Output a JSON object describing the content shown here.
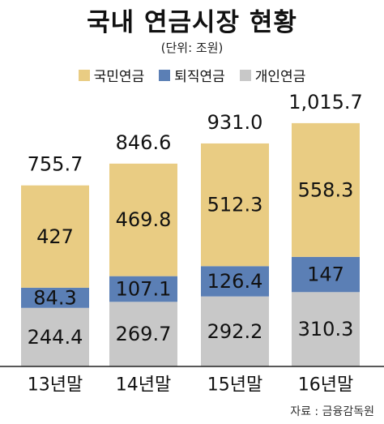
{
  "chart_data": {
    "type": "bar",
    "stacked": true,
    "title": "국내 연금시장 현황",
    "unit_label": "(단위: 조원)",
    "categories": [
      "13년말",
      "14년말",
      "15년말",
      "16년말"
    ],
    "series": [
      {
        "name": "개인연금",
        "color": "#c8c8c8",
        "values": [
          244.4,
          269.7,
          292.2,
          310.3
        ]
      },
      {
        "name": "퇴직연금",
        "color": "#5b7fb5",
        "values": [
          84.3,
          107.1,
          126.4,
          147
        ]
      },
      {
        "name": "국민연금",
        "color": "#e9cc83",
        "values": [
          427,
          469.8,
          512.3,
          558.3
        ]
      }
    ],
    "totals": [
      "755.7",
      "846.6",
      "931.0",
      "1,015.7"
    ],
    "value_labels": {
      "개인연금": [
        "244.4",
        "269.7",
        "292.2",
        "310.3"
      ],
      "퇴직연금": [
        "84.3",
        "107.1",
        "126.4",
        "147"
      ],
      "국민연금": [
        "427",
        "469.8",
        "512.3",
        "558.3"
      ]
    },
    "legend": [
      "국민연금",
      "퇴직연금",
      "개인연금"
    ],
    "legend_position": "top",
    "grid": false,
    "source": "자료 : 금융감독원"
  }
}
